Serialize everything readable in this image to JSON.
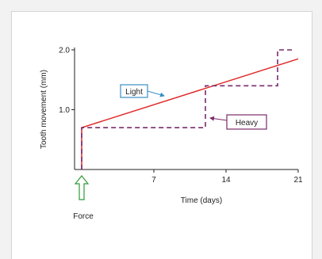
{
  "chart_data": {
    "type": "line",
    "xlabel": "Time (days)",
    "ylabel": "Tooth movement (mm)",
    "xlim": [
      0,
      21
    ],
    "ylim": [
      0,
      2.0
    ],
    "x_ticks": [
      7,
      14,
      21
    ],
    "y_ticks": [
      1.0,
      2.0
    ],
    "y_tick_labels": [
      "1.0",
      "2.0"
    ],
    "grid": false,
    "series": [
      {
        "name": "Light",
        "color": "#e02a2a",
        "style": "solid",
        "points": [
          [
            0,
            0
          ],
          [
            0,
            0.7
          ],
          [
            21,
            1.85
          ]
        ]
      },
      {
        "name": "Heavy",
        "color": "#7a2a6a",
        "style": "dashed",
        "points": [
          [
            0,
            0
          ],
          [
            0,
            0.7
          ],
          [
            12,
            0.7
          ],
          [
            12,
            1.4
          ],
          [
            19,
            1.4
          ],
          [
            19,
            2.0
          ],
          [
            20.5,
            2.0
          ]
        ]
      }
    ],
    "annotations": [
      {
        "text": "Light",
        "color": "#3a8fc4",
        "target_series": "Light"
      },
      {
        "text": "Heavy",
        "color": "#7a2a6a",
        "target_series": "Heavy"
      },
      {
        "text": "Force",
        "color": "#2f9a3a",
        "at_x": 0
      }
    ]
  }
}
